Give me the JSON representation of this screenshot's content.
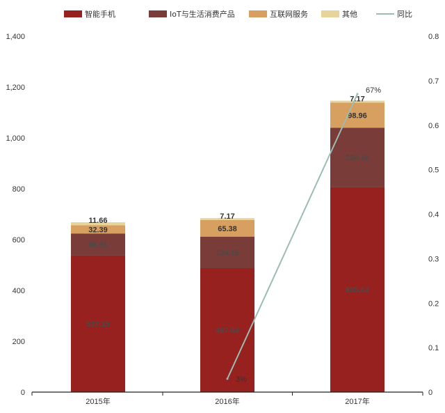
{
  "chart_data": {
    "type": "bar",
    "stacked": true,
    "categories": [
      "2015年",
      "2016年",
      "2017年"
    ],
    "series": [
      {
        "name": "智能手机",
        "color": "#96211e",
        "values": [
          537.15,
          487.64,
          805.64
        ],
        "labels": [
          "537.15",
          "487.64",
          "805.64"
        ]
      },
      {
        "name": "IoT与生活消费产品",
        "color": "#7a3c39",
        "values": [
          86.91,
          124.15,
          234.48
        ],
        "labels": [
          "86.91",
          "124.15",
          "234.48"
        ]
      },
      {
        "name": "互联网服务",
        "color": "#d8a060",
        "values": [
          32.39,
          65.38,
          98.96
        ],
        "labels": [
          "32.39",
          "65.38",
          "98.96"
        ]
      },
      {
        "name": "其他",
        "color": "#e6d49a",
        "values": [
          11.66,
          7.17,
          7.17
        ],
        "labels": [
          "11.66",
          "7.17",
          "7.17"
        ]
      }
    ],
    "line_series": {
      "name": "同比",
      "color": "#9bbcb4",
      "axis": "right",
      "points": [
        {
          "category": "2016年",
          "value": 0.03,
          "label": "3%"
        },
        {
          "category": "2017年",
          "value": 0.67,
          "label": "67%"
        }
      ]
    },
    "y_left": {
      "min": 0,
      "max": 1400,
      "ticks": [
        "0",
        "200",
        "400",
        "600",
        "800",
        "1,000",
        "1,200",
        "1,400"
      ]
    },
    "y_right": {
      "min": 0,
      "max": 0.8,
      "ticks": [
        "0",
        "0.1",
        "0.2",
        "0.3",
        "0.4",
        "0.5",
        "0.6",
        "0.7",
        "0.8"
      ]
    },
    "legend_position": "top",
    "grid": false
  }
}
